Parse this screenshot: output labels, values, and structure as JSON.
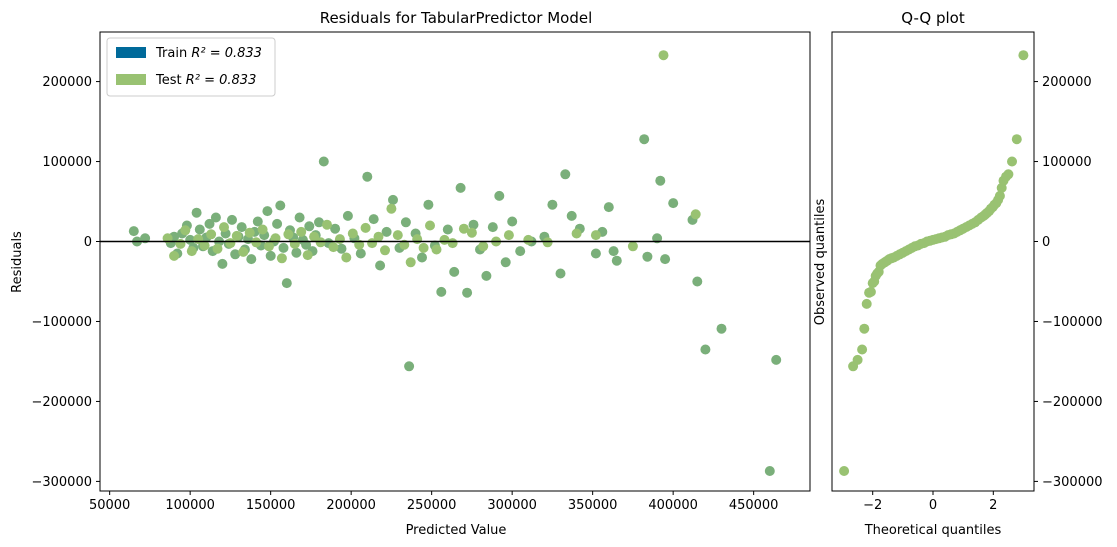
{
  "colors": {
    "train": "#006a9a",
    "test": "#99c272",
    "train_points": "#7aaf7a",
    "test_points": "#99c272",
    "axis": "#000000",
    "background": "#ffffff"
  },
  "chart_data": [
    {
      "type": "scatter",
      "title": "Residuals for TabularPredictor Model",
      "xlabel": "Predicted Value",
      "ylabel": "Residuals",
      "xlim": [
        44000,
        485000
      ],
      "ylim": [
        -312000,
        262000
      ],
      "xticks": [
        50000,
        100000,
        150000,
        200000,
        250000,
        300000,
        350000,
        400000,
        450000
      ],
      "xtick_labels": [
        "50000",
        "100000",
        "150000",
        "200000",
        "250000",
        "300000",
        "350000",
        "400000",
        "450000"
      ],
      "yticks": [
        -300000,
        -200000,
        -100000,
        0,
        100000,
        200000
      ],
      "ytick_labels": [
        "−300000",
        "−200000",
        "−100000",
        "0",
        "100000",
        "200000"
      ],
      "hline": 0,
      "grid": false,
      "legend": {
        "placement": "top-left",
        "entries": [
          {
            "label_prefix": "Train ",
            "label_math": "R² = 0.833",
            "color": "#006a9a"
          },
          {
            "label_prefix": "Test ",
            "label_math": "R² = 0.833",
            "color": "#99c272"
          }
        ]
      },
      "series": [
        {
          "name": "Train",
          "color": "#7aaf7a",
          "points": [
            [
              65000,
              13000
            ],
            [
              67000,
              0
            ],
            [
              72000,
              4000
            ],
            [
              88000,
              -2000
            ],
            [
              90000,
              6000
            ],
            [
              92000,
              -15000
            ],
            [
              95000,
              10000
            ],
            [
              98000,
              20000
            ],
            [
              100000,
              2000
            ],
            [
              102000,
              -8000
            ],
            [
              104000,
              36000
            ],
            [
              106000,
              15000
            ],
            [
              108000,
              -6000
            ],
            [
              110000,
              5000
            ],
            [
              112000,
              22000
            ],
            [
              114000,
              -12000
            ],
            [
              116000,
              30000
            ],
            [
              118000,
              0
            ],
            [
              120000,
              -28000
            ],
            [
              122000,
              10000
            ],
            [
              124000,
              -3000
            ],
            [
              126000,
              27000
            ],
            [
              128000,
              -16000
            ],
            [
              130000,
              6000
            ],
            [
              132000,
              18000
            ],
            [
              134000,
              -10000
            ],
            [
              136000,
              3000
            ],
            [
              138000,
              -22000
            ],
            [
              140000,
              12000
            ],
            [
              142000,
              25000
            ],
            [
              144000,
              -5000
            ],
            [
              146000,
              8000
            ],
            [
              148000,
              38000
            ],
            [
              150000,
              -18000
            ],
            [
              152000,
              0
            ],
            [
              154000,
              22000
            ],
            [
              156000,
              45000
            ],
            [
              158000,
              -8000
            ],
            [
              160000,
              -52000
            ],
            [
              162000,
              14000
            ],
            [
              164000,
              5000
            ],
            [
              166000,
              -14000
            ],
            [
              168000,
              30000
            ],
            [
              170000,
              2000
            ],
            [
              172000,
              -4000
            ],
            [
              174000,
              19000
            ],
            [
              176000,
              -12000
            ],
            [
              178000,
              8000
            ],
            [
              180000,
              24000
            ],
            [
              183000,
              100000
            ],
            [
              186000,
              -2000
            ],
            [
              190000,
              16000
            ],
            [
              194000,
              -9000
            ],
            [
              198000,
              32000
            ],
            [
              202000,
              4000
            ],
            [
              206000,
              -15000
            ],
            [
              210000,
              81000
            ],
            [
              214000,
              28000
            ],
            [
              218000,
              -30000
            ],
            [
              222000,
              12000
            ],
            [
              226000,
              52000
            ],
            [
              230000,
              -8000
            ],
            [
              234000,
              24000
            ],
            [
              236000,
              -156000
            ],
            [
              240000,
              10000
            ],
            [
              244000,
              -20000
            ],
            [
              248000,
              46000
            ],
            [
              252000,
              -5000
            ],
            [
              256000,
              -63000
            ],
            [
              260000,
              15000
            ],
            [
              264000,
              -38000
            ],
            [
              268000,
              67000
            ],
            [
              272000,
              -64000
            ],
            [
              276000,
              21000
            ],
            [
              280000,
              -10000
            ],
            [
              284000,
              -43000
            ],
            [
              288000,
              18000
            ],
            [
              292000,
              57000
            ],
            [
              296000,
              -26000
            ],
            [
              300000,
              25000
            ],
            [
              305000,
              -12000
            ],
            [
              312000,
              0
            ],
            [
              320000,
              6000
            ],
            [
              325000,
              46000
            ],
            [
              330000,
              -40000
            ],
            [
              333000,
              84000
            ],
            [
              337000,
              32000
            ],
            [
              342000,
              16000
            ],
            [
              352000,
              -15000
            ],
            [
              356000,
              12000
            ],
            [
              360000,
              43000
            ],
            [
              363000,
              -12000
            ],
            [
              365000,
              -24000
            ],
            [
              382000,
              128000
            ],
            [
              384000,
              -19000
            ],
            [
              390000,
              4000
            ],
            [
              392000,
              76000
            ],
            [
              395000,
              -22000
            ],
            [
              400000,
              48000
            ],
            [
              412000,
              27000
            ],
            [
              415000,
              -50000
            ],
            [
              430000,
              -109000
            ],
            [
              420000,
              -135000
            ],
            [
              460000,
              -287000
            ],
            [
              464000,
              -148000
            ]
          ]
        },
        {
          "name": "Test",
          "color": "#99c272",
          "points": [
            [
              86000,
              4000
            ],
            [
              90000,
              -18000
            ],
            [
              94000,
              -3000
            ],
            [
              97000,
              14000
            ],
            [
              101000,
              -12000
            ],
            [
              105000,
              3000
            ],
            [
              109000,
              -5000
            ],
            [
              113000,
              9000
            ],
            [
              117000,
              -9000
            ],
            [
              121000,
              18000
            ],
            [
              125000,
              -2000
            ],
            [
              129000,
              7000
            ],
            [
              133000,
              -13000
            ],
            [
              137000,
              11000
            ],
            [
              141000,
              -1000
            ],
            [
              145000,
              15000
            ],
            [
              149000,
              -6000
            ],
            [
              153000,
              4000
            ],
            [
              157000,
              -21000
            ],
            [
              161000,
              9000
            ],
            [
              165000,
              -3000
            ],
            [
              169000,
              12000
            ],
            [
              173000,
              -17000
            ],
            [
              177000,
              6000
            ],
            [
              181000,
              -1000
            ],
            [
              185000,
              21000
            ],
            [
              189000,
              -7000
            ],
            [
              193000,
              3000
            ],
            [
              197000,
              -20000
            ],
            [
              201000,
              10000
            ],
            [
              205000,
              -4000
            ],
            [
              209000,
              17000
            ],
            [
              213000,
              -2000
            ],
            [
              217000,
              6000
            ],
            [
              221000,
              -11000
            ],
            [
              225000,
              41000
            ],
            [
              229000,
              8000
            ],
            [
              233000,
              -4000
            ],
            [
              237000,
              -26000
            ],
            [
              241000,
              3000
            ],
            [
              245000,
              -8000
            ],
            [
              249000,
              20000
            ],
            [
              253000,
              -10000
            ],
            [
              258000,
              2000
            ],
            [
              263000,
              -2000
            ],
            [
              270000,
              16000
            ],
            [
              275000,
              11000
            ],
            [
              282000,
              -6000
            ],
            [
              290000,
              0
            ],
            [
              298000,
              8000
            ],
            [
              310000,
              2000
            ],
            [
              322000,
              -1000
            ],
            [
              340000,
              10000
            ],
            [
              352000,
              8000
            ],
            [
              375000,
              -6000
            ],
            [
              394000,
              233000
            ],
            [
              414000,
              34000
            ]
          ]
        }
      ]
    },
    {
      "type": "scatter",
      "title": "Q-Q plot",
      "xlabel": "Theoretical quantiles",
      "ylabel": "Observed quantiles",
      "xlim": [
        -3.35,
        3.35
      ],
      "ylim": [
        -312000,
        262000
      ],
      "xticks": [
        -2,
        0,
        2
      ],
      "xtick_labels": [
        "−2",
        "0",
        "2"
      ],
      "yticks": [
        -300000,
        -200000,
        -100000,
        0,
        100000,
        200000
      ],
      "ytick_labels": [
        "−300000",
        "−200000",
        "−100000",
        "0",
        "100000",
        "200000"
      ],
      "ytick_side": "right",
      "grid": false,
      "series": [
        {
          "name": "",
          "color": "#99c272",
          "points": [
            [
              -2.95,
              -287000
            ],
            [
              -2.65,
              -156000
            ],
            [
              -2.5,
              -148000
            ],
            [
              -2.35,
              -135000
            ],
            [
              -2.28,
              -109000
            ],
            [
              -2.2,
              -78000
            ],
            [
              -2.12,
              -64000
            ],
            [
              -2.06,
              -63000
            ],
            [
              -2.0,
              -52000
            ],
            [
              -1.95,
              -50000
            ],
            [
              -1.9,
              -43000
            ],
            [
              -1.85,
              -40000
            ],
            [
              -1.8,
              -38000
            ],
            [
              -1.74,
              -30000
            ],
            [
              -1.68,
              -28000
            ],
            [
              -1.6,
              -26000
            ],
            [
              -1.52,
              -24000
            ],
            [
              -1.45,
              -22000
            ],
            [
              -1.38,
              -21000
            ],
            [
              -1.3,
              -20000
            ],
            [
              -1.2,
              -18000
            ],
            [
              -1.1,
              -16000
            ],
            [
              -1.0,
              -14000
            ],
            [
              -0.9,
              -12000
            ],
            [
              -0.8,
              -10000
            ],
            [
              -0.7,
              -8000
            ],
            [
              -0.6,
              -6000
            ],
            [
              -0.5,
              -5000
            ],
            [
              -0.4,
              -3000
            ],
            [
              -0.3,
              -2000
            ],
            [
              -0.2,
              0
            ],
            [
              -0.1,
              1000
            ],
            [
              0.0,
              2000
            ],
            [
              0.1,
              3000
            ],
            [
              0.2,
              4000
            ],
            [
              0.3,
              5000
            ],
            [
              0.4,
              6000
            ],
            [
              0.5,
              8000
            ],
            [
              0.6,
              9000
            ],
            [
              0.7,
              10000
            ],
            [
              0.8,
              12000
            ],
            [
              0.9,
              14000
            ],
            [
              1.0,
              16000
            ],
            [
              1.1,
              18000
            ],
            [
              1.2,
              20000
            ],
            [
              1.3,
              22000
            ],
            [
              1.4,
              24000
            ],
            [
              1.5,
              27000
            ],
            [
              1.6,
              30000
            ],
            [
              1.68,
              32000
            ],
            [
              1.74,
              34000
            ],
            [
              1.8,
              36000
            ],
            [
              1.86,
              38000
            ],
            [
              1.92,
              41000
            ],
            [
              1.98,
              43000
            ],
            [
              2.04,
              46000
            ],
            [
              2.1,
              48000
            ],
            [
              2.16,
              52000
            ],
            [
              2.22,
              57000
            ],
            [
              2.28,
              67000
            ],
            [
              2.34,
              76000
            ],
            [
              2.42,
              81000
            ],
            [
              2.5,
              84000
            ],
            [
              2.62,
              100000
            ],
            [
              2.78,
              128000
            ],
            [
              3.0,
              233000
            ]
          ]
        }
      ]
    }
  ]
}
